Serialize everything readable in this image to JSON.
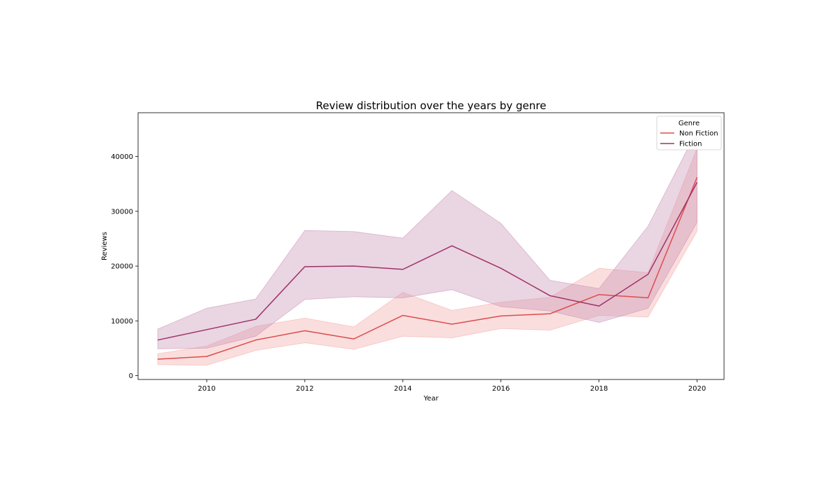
{
  "chart_data": {
    "type": "line",
    "title": "Review distribution over the years by genre",
    "xlabel": "Year",
    "ylabel": "Reviews",
    "xlim": [
      2008.6,
      2020.55
    ],
    "ylim": [
      -700,
      48000
    ],
    "xticks": [
      2010,
      2012,
      2014,
      2016,
      2018,
      2020
    ],
    "yticks": [
      0,
      10000,
      20000,
      30000,
      40000
    ],
    "grid": false,
    "legend": {
      "title": "Genre",
      "placement": "top-right"
    },
    "x": [
      2009,
      2010,
      2011,
      2012,
      2013,
      2014,
      2015,
      2016,
      2017,
      2018,
      2019,
      2020
    ],
    "series": [
      {
        "name": "Non Fiction",
        "color": "#dd4c4f",
        "band_color": "#f2a8a6",
        "values": [
          3000,
          3500,
          6500,
          8200,
          6700,
          11000,
          9400,
          10900,
          11300,
          14800,
          14200,
          36200
        ],
        "ci_lower": [
          2000,
          1900,
          4600,
          6000,
          4800,
          7200,
          6900,
          8600,
          8300,
          11000,
          10700,
          26400
        ],
        "ci_upper": [
          4000,
          5400,
          9000,
          10500,
          8900,
          15200,
          11900,
          13400,
          14300,
          19600,
          18800,
          41500
        ]
      },
      {
        "name": "Fiction",
        "color": "#9e3269",
        "band_color": "#c990b3",
        "values": [
          6500,
          8400,
          10300,
          19900,
          20000,
          19400,
          23700,
          19600,
          14600,
          12700,
          18500,
          35300
        ],
        "ci_lower": [
          4900,
          5000,
          7200,
          13900,
          14400,
          14200,
          15700,
          12600,
          11800,
          9700,
          12300,
          28000
        ],
        "ci_upper": [
          8500,
          12300,
          14000,
          26500,
          26300,
          25100,
          33800,
          27800,
          17400,
          15900,
          27300,
          44800
        ]
      }
    ]
  }
}
